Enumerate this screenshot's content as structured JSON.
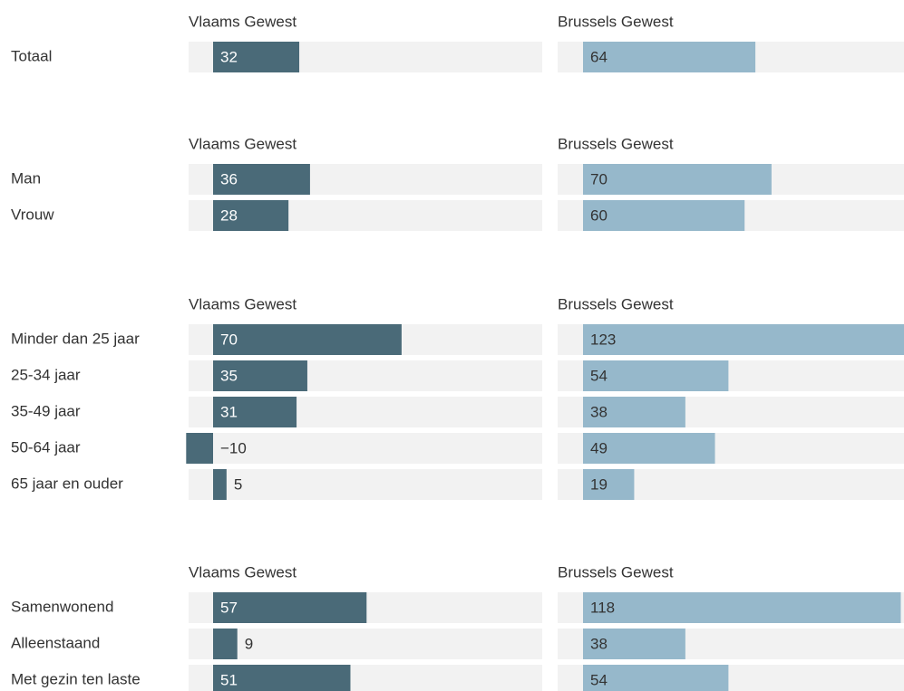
{
  "chart_data": [
    {
      "type": "bar",
      "categories": [
        "Totaal"
      ],
      "series": [
        {
          "name": "Vlaams Gewest",
          "color": "#4a6a78",
          "values": [
            32
          ]
        },
        {
          "name": "Brussels Gewest",
          "color": "#96b8cb",
          "values": [
            64
          ]
        }
      ]
    },
    {
      "type": "bar",
      "categories": [
        "Man",
        "Vrouw"
      ],
      "series": [
        {
          "name": "Vlaams Gewest",
          "color": "#4a6a78",
          "values": [
            36,
            28
          ]
        },
        {
          "name": "Brussels Gewest",
          "color": "#96b8cb",
          "values": [
            70,
            60
          ]
        }
      ]
    },
    {
      "type": "bar",
      "categories": [
        "Minder dan 25 jaar",
        "25-34 jaar",
        "35-49 jaar",
        "50-64 jaar",
        "65 jaar en ouder"
      ],
      "series": [
        {
          "name": "Vlaams Gewest",
          "color": "#4a6a78",
          "values": [
            70,
            35,
            31,
            -10,
            5
          ],
          "value_labels": [
            "70",
            "35",
            "31",
            "−10",
            "5"
          ]
        },
        {
          "name": "Brussels Gewest",
          "color": "#96b8cb",
          "values": [
            123,
            54,
            38,
            49,
            19
          ]
        }
      ]
    },
    {
      "type": "bar",
      "categories": [
        "Samenwonend",
        "Alleenstaand",
        "Met gezin ten laste"
      ],
      "series": [
        {
          "name": "Vlaams Gewest",
          "color": "#4a6a78",
          "values": [
            57,
            9,
            51
          ]
        },
        {
          "name": "Brussels Gewest",
          "color": "#96b8cb",
          "values": [
            118,
            38,
            54
          ]
        }
      ]
    }
  ]
}
